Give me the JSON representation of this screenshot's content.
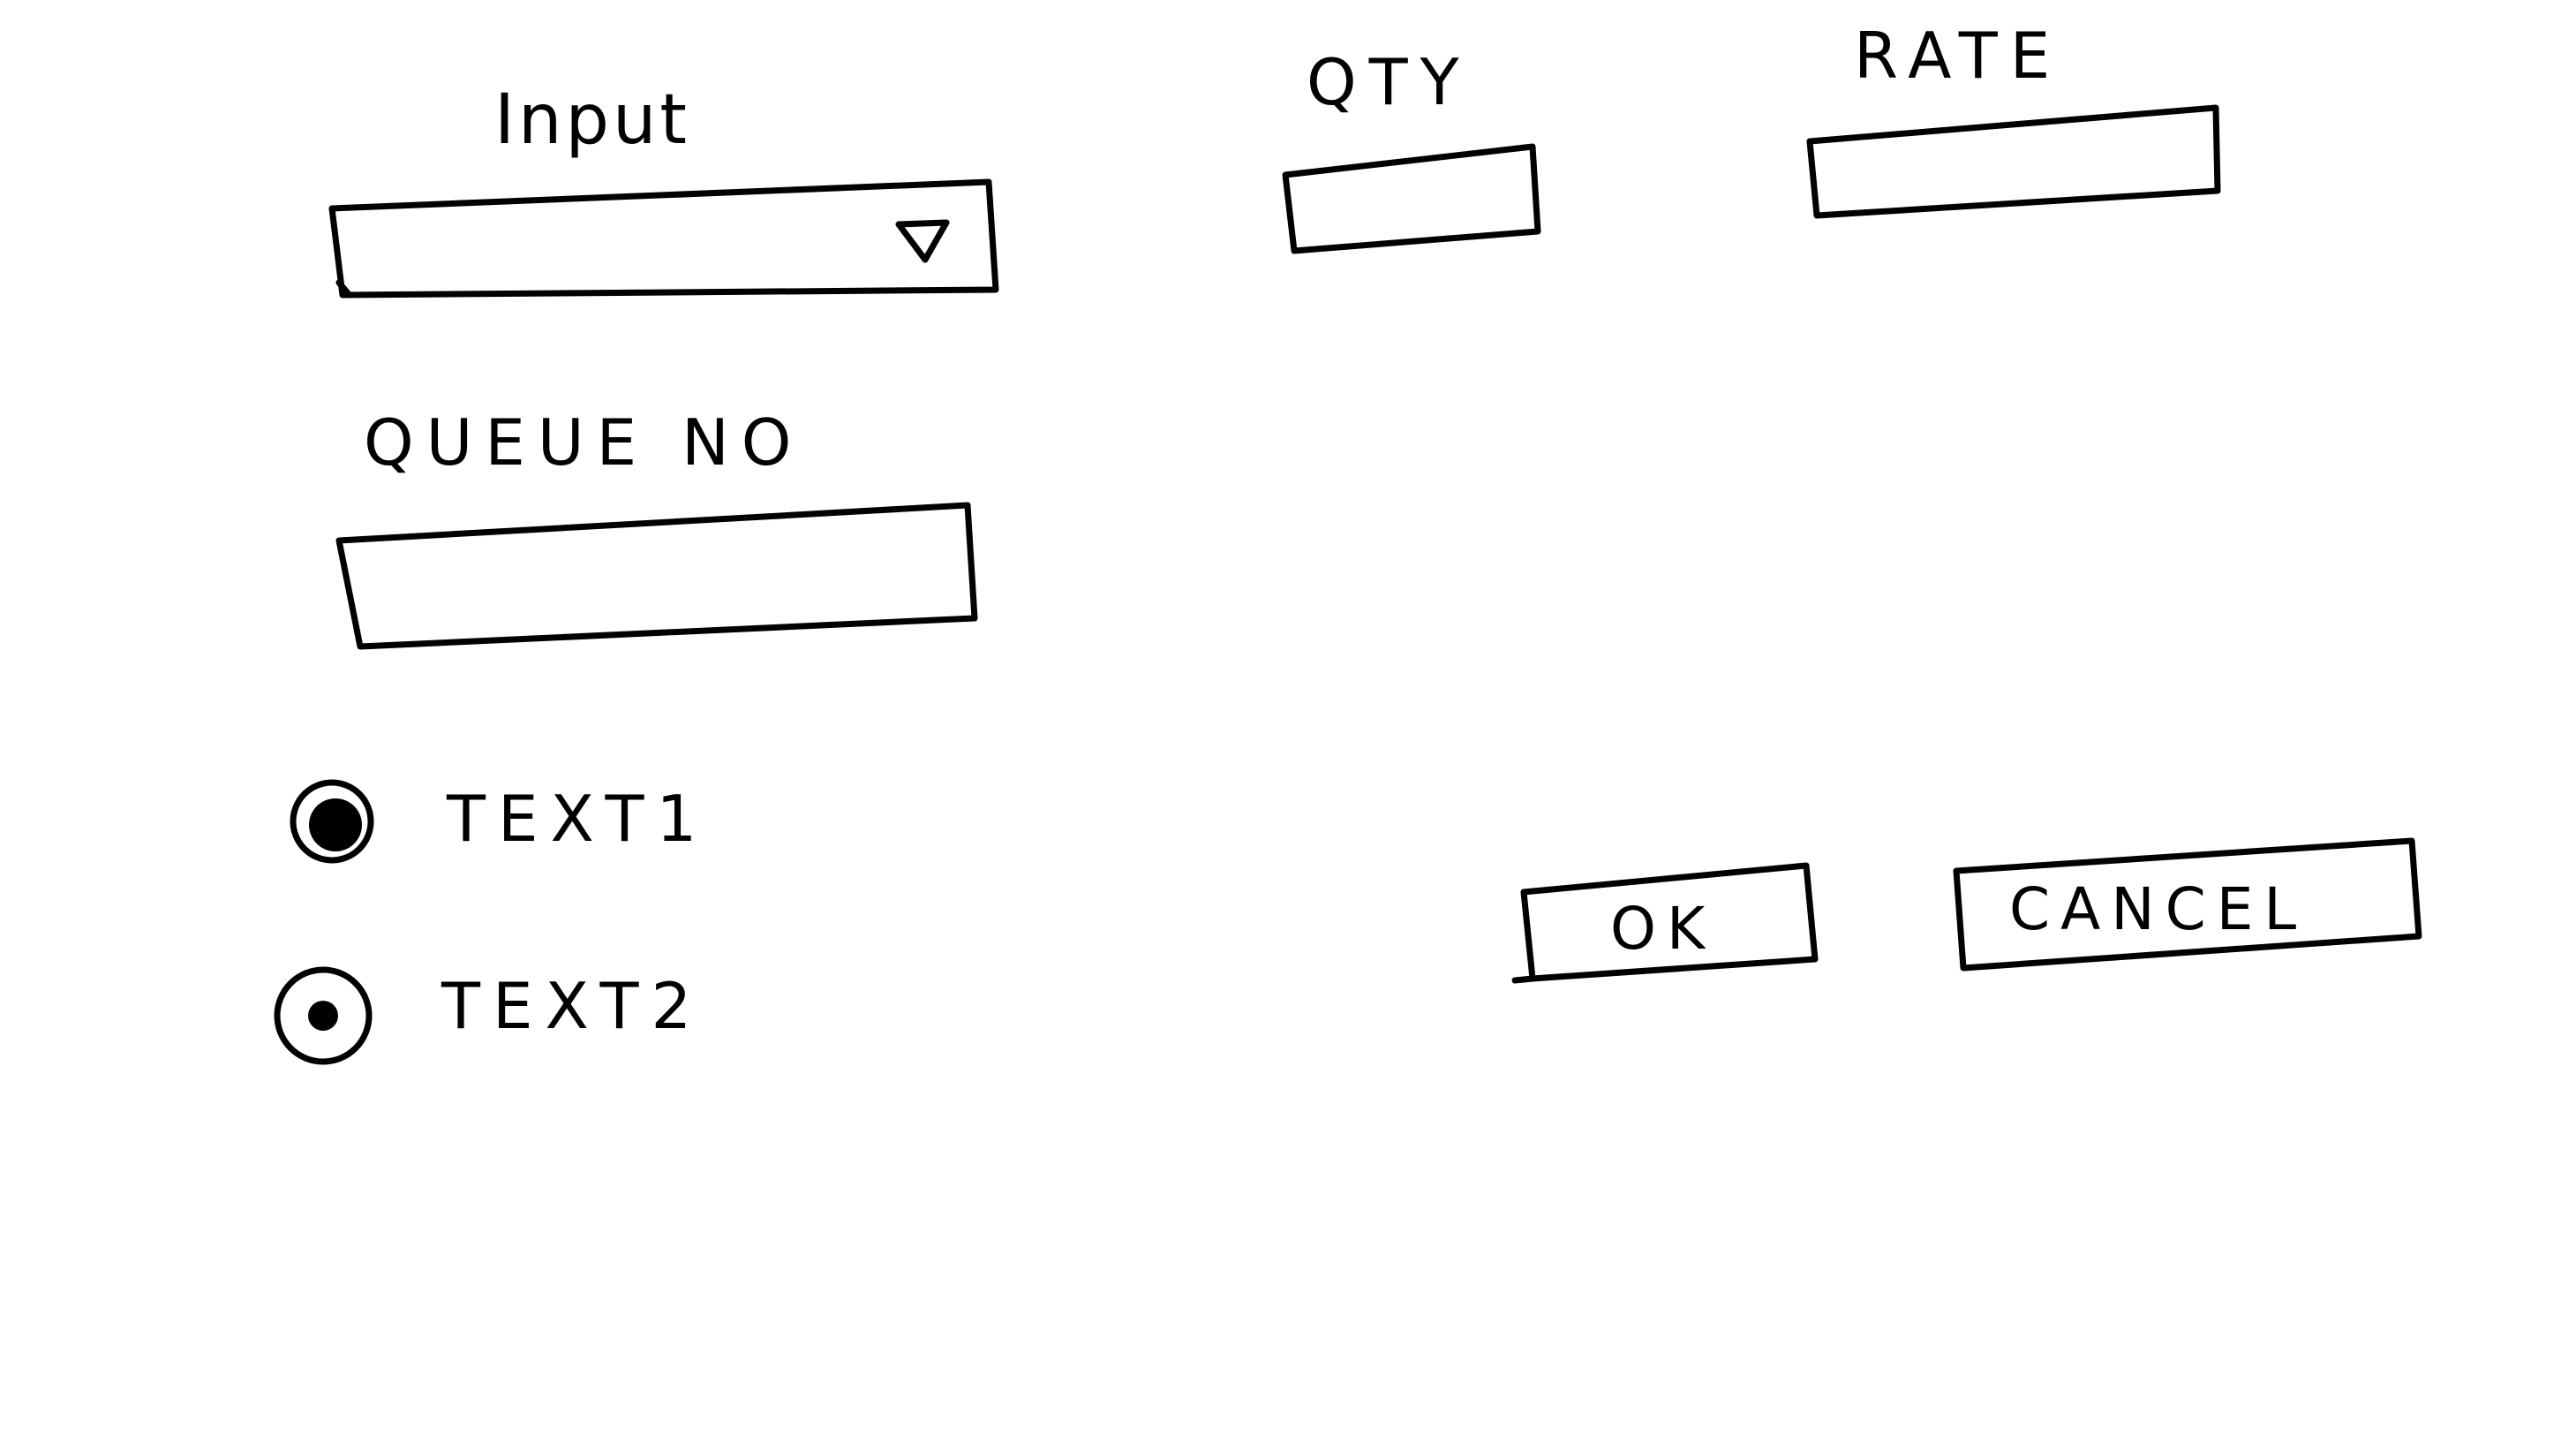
{
  "form": {
    "input": {
      "label": "Input",
      "value": "",
      "dropdown_icon": "triangle-down-icon"
    },
    "qty": {
      "label": "QTY",
      "value": ""
    },
    "rate": {
      "label": "RATE",
      "value": ""
    },
    "queue_no": {
      "label": "QUEUE NO",
      "value": ""
    },
    "radio_options": [
      {
        "label": "TEXT1",
        "selected": true
      },
      {
        "label": "TEXT2",
        "selected": true
      }
    ]
  },
  "buttons": {
    "ok_label": "OK",
    "cancel_label": "CANCEL"
  }
}
